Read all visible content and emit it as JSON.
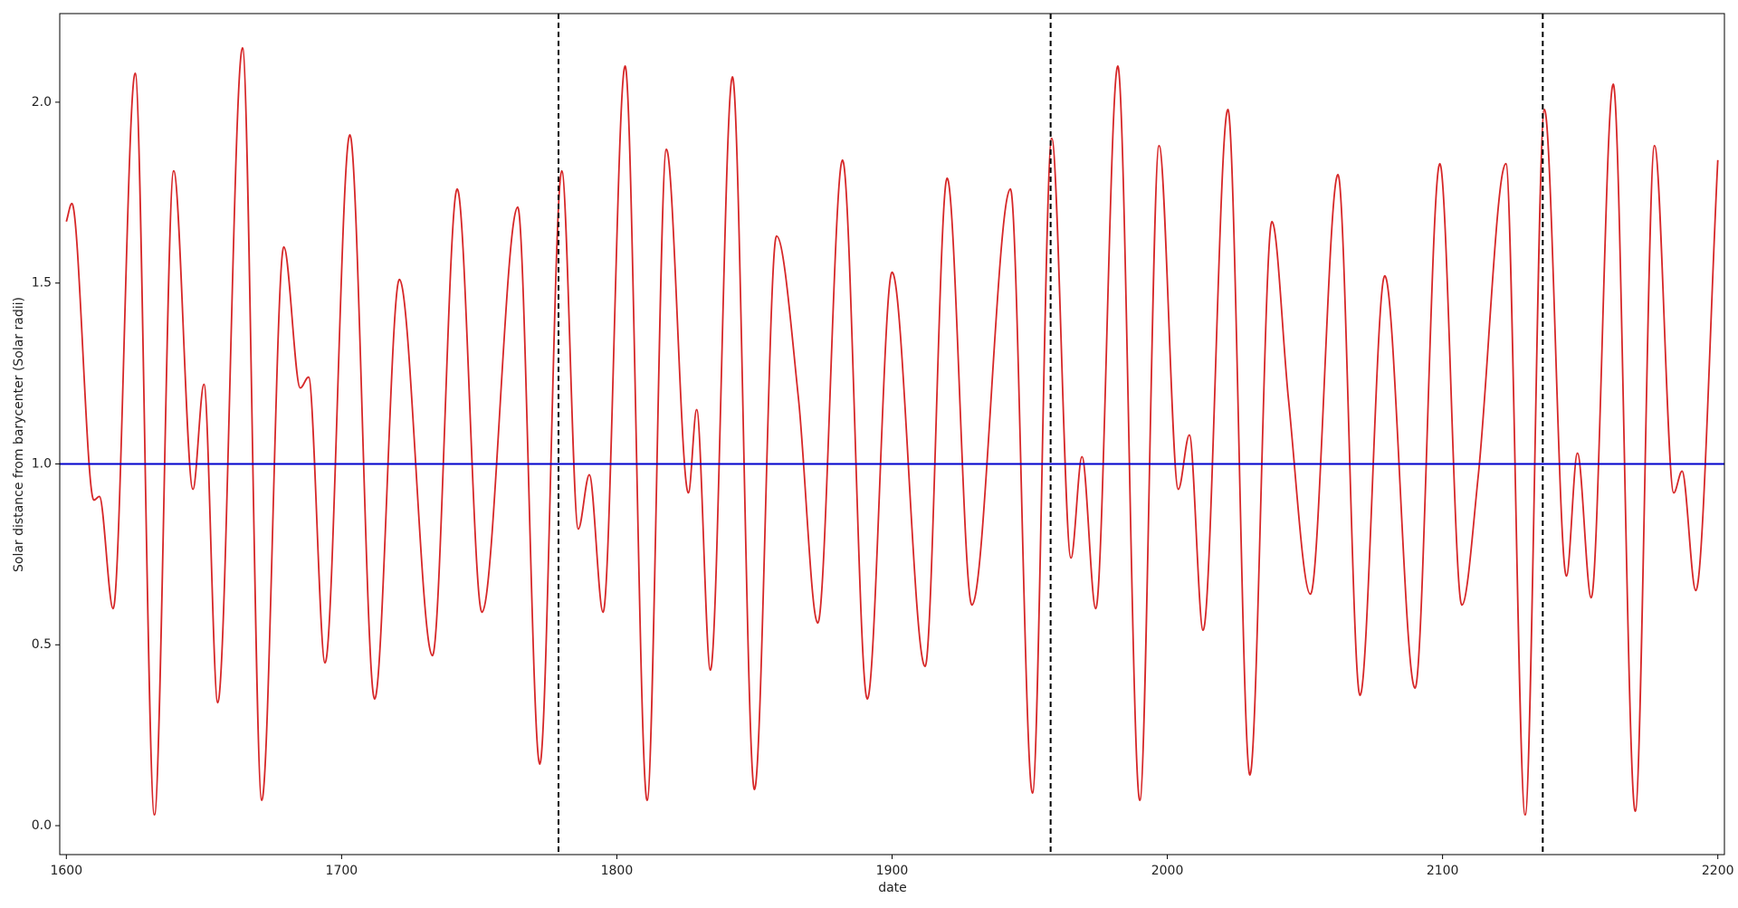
{
  "chart_data": {
    "type": "line",
    "xlabel": "date",
    "ylabel": "Solar distance from barycenter (Solar radii)",
    "x": [
      1600,
      1602,
      1610,
      1612,
      1617,
      1625,
      1632,
      1639,
      1646,
      1650,
      1655,
      1664,
      1671,
      1679,
      1685,
      1688,
      1694,
      1703,
      1712,
      1721,
      1733,
      1742,
      1751,
      1764,
      1772,
      1780,
      1786,
      1790,
      1795,
      1803,
      1811,
      1818,
      1826,
      1829,
      1834,
      1842,
      1850,
      1858,
      1866,
      1873,
      1882,
      1891,
      1900,
      1912,
      1920,
      1929,
      1943,
      1951,
      1958,
      1965,
      1969,
      1974,
      1982,
      1990,
      1997,
      2004,
      2008,
      2013,
      2022,
      2030,
      2038,
      2044,
      2052,
      2062,
      2070,
      2079,
      2090,
      2099,
      2107,
      2113,
      2123,
      2130,
      2137,
      2145,
      2149,
      2154,
      2162,
      2170,
      2177,
      2184,
      2187,
      2192,
      2200
    ],
    "values": [
      1.67,
      1.72,
      0.9,
      0.91,
      0.6,
      2.08,
      0.03,
      1.81,
      0.93,
      1.22,
      0.34,
      2.15,
      0.07,
      1.6,
      1.21,
      1.24,
      0.45,
      1.91,
      0.35,
      1.51,
      0.47,
      1.76,
      0.59,
      1.71,
      0.17,
      1.81,
      0.82,
      0.97,
      0.59,
      2.1,
      0.07,
      1.87,
      0.92,
      1.15,
      0.43,
      2.07,
      0.1,
      1.63,
      1.18,
      0.56,
      1.84,
      0.35,
      1.53,
      0.44,
      1.79,
      0.61,
      1.76,
      0.09,
      1.9,
      0.74,
      1.02,
      0.6,
      2.1,
      0.07,
      1.88,
      0.93,
      1.08,
      0.54,
      1.98,
      0.14,
      1.67,
      1.18,
      0.64,
      1.8,
      0.36,
      1.52,
      0.38,
      1.83,
      0.61,
      0.97,
      1.83,
      0.03,
      1.98,
      0.69,
      1.03,
      0.63,
      2.05,
      0.04,
      1.88,
      0.92,
      0.98,
      0.65,
      1.84
    ],
    "color": "#d62728",
    "label_color": "#d62728",
    "hline": {
      "value": 1.0,
      "color": "#0000cc"
    },
    "vlines": {
      "values": [
        1778.8,
        1957.6,
        2136.4
      ],
      "color": "#000000",
      "dashed": true
    },
    "xlim": [
      1597.6,
      2202.4
    ],
    "ylim": [
      -0.08,
      2.245
    ],
    "xticks": [
      1600,
      1700,
      1800,
      1900,
      2000,
      2100,
      2200
    ],
    "yticks": [
      {
        "value": 0.0,
        "label": "0.0"
      },
      0.5,
      {
        "value": 1.0,
        "label": "1.0"
      },
      1.5,
      {
        "value": 2.0,
        "label": "2.0"
      }
    ],
    "grid": false
  }
}
